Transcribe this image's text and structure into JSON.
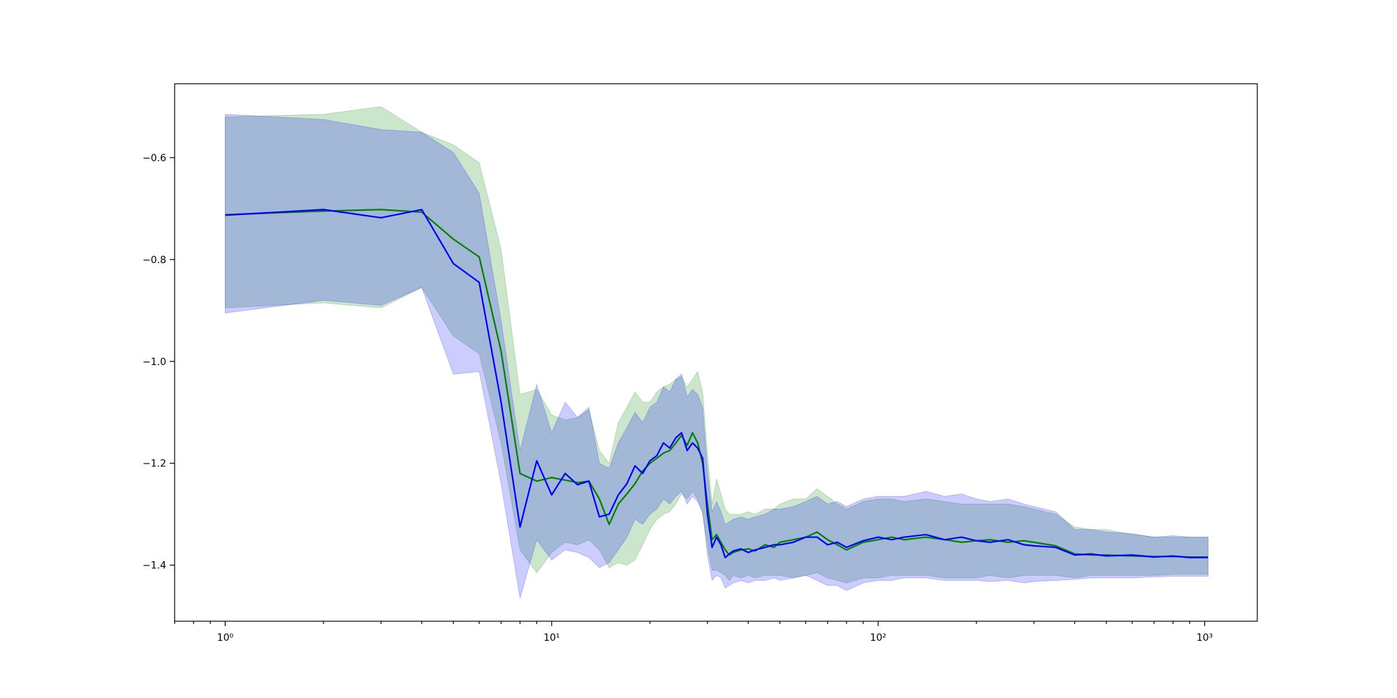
{
  "chart_data": {
    "type": "line",
    "title": "",
    "xlabel": "",
    "ylabel": "",
    "x_scale": "log",
    "xlim": [
      0.7,
      1450
    ],
    "ylim": [
      -1.51,
      -0.455
    ],
    "grid": false,
    "legend": "none",
    "x_ticks": [
      {
        "value": 1,
        "label": "10⁰"
      },
      {
        "value": 10,
        "label": "10¹"
      },
      {
        "value": 100,
        "label": "10²"
      },
      {
        "value": 1000,
        "label": "10³"
      }
    ],
    "y_ticks": [
      {
        "value": -0.6,
        "label": "−0.6"
      },
      {
        "value": -0.8,
        "label": "−0.8"
      },
      {
        "value": -1.0,
        "label": "−1.0"
      },
      {
        "value": -1.2,
        "label": "−1.2"
      },
      {
        "value": -1.4,
        "label": "−1.4"
      }
    ],
    "series": [
      {
        "color": "#008000",
        "band_color": "#008000",
        "band_opacity": 0.2,
        "x": [
          1,
          2,
          3,
          4,
          5,
          6,
          7,
          8,
          9,
          10,
          11,
          12,
          13,
          14,
          15,
          16,
          17,
          18,
          19,
          20,
          21,
          22,
          23,
          24,
          25,
          26,
          27,
          28,
          29,
          30,
          31,
          32,
          33,
          34,
          35,
          36,
          38,
          40,
          42,
          45,
          48,
          50,
          55,
          60,
          65,
          70,
          75,
          80,
          90,
          100,
          110,
          120,
          140,
          160,
          180,
          200,
          220,
          250,
          280,
          300,
          350,
          400,
          450,
          500,
          600,
          700,
          800,
          900,
          1024
        ],
        "values": [
          -0.712,
          -0.705,
          -0.702,
          -0.707,
          -0.76,
          -0.795,
          -0.98,
          -1.22,
          -1.235,
          -1.228,
          -1.233,
          -1.238,
          -1.235,
          -1.27,
          -1.32,
          -1.28,
          -1.26,
          -1.24,
          -1.215,
          -1.2,
          -1.19,
          -1.18,
          -1.175,
          -1.16,
          -1.145,
          -1.165,
          -1.14,
          -1.16,
          -1.2,
          -1.28,
          -1.35,
          -1.34,
          -1.355,
          -1.37,
          -1.38,
          -1.375,
          -1.37,
          -1.368,
          -1.372,
          -1.36,
          -1.365,
          -1.355,
          -1.35,
          -1.345,
          -1.335,
          -1.35,
          -1.36,
          -1.37,
          -1.355,
          -1.35,
          -1.345,
          -1.35,
          -1.345,
          -1.35,
          -1.355,
          -1.352,
          -1.35,
          -1.355,
          -1.352,
          -1.355,
          -1.362,
          -1.378,
          -1.38,
          -1.38,
          -1.382,
          -1.383,
          -1.383,
          -1.384,
          -1.384
        ],
        "band_low": [
          -0.895,
          -0.885,
          -0.895,
          -0.855,
          -0.95,
          -0.985,
          -1.16,
          -1.37,
          -1.415,
          -1.375,
          -1.355,
          -1.36,
          -1.35,
          -1.37,
          -1.405,
          -1.395,
          -1.4,
          -1.39,
          -1.36,
          -1.33,
          -1.31,
          -1.3,
          -1.295,
          -1.28,
          -1.26,
          -1.27,
          -1.255,
          -1.27,
          -1.3,
          -1.36,
          -1.41,
          -1.41,
          -1.415,
          -1.42,
          -1.43,
          -1.42,
          -1.425,
          -1.42,
          -1.425,
          -1.42,
          -1.42,
          -1.42,
          -1.425,
          -1.42,
          -1.415,
          -1.425,
          -1.43,
          -1.435,
          -1.425,
          -1.425,
          -1.42,
          -1.42,
          -1.42,
          -1.425,
          -1.425,
          -1.425,
          -1.42,
          -1.425,
          -1.42,
          -1.42,
          -1.42,
          -1.425,
          -1.42,
          -1.42,
          -1.42,
          -1.42,
          -1.418,
          -1.418,
          -1.418
        ],
        "band_high": [
          -0.52,
          -0.515,
          -0.5,
          -0.55,
          -0.575,
          -0.61,
          -0.78,
          -1.065,
          -1.055,
          -1.105,
          -1.115,
          -1.11,
          -1.095,
          -1.175,
          -1.2,
          -1.12,
          -1.09,
          -1.06,
          -1.08,
          -1.08,
          -1.06,
          -1.05,
          -1.045,
          -1.035,
          -1.03,
          -1.05,
          -1.035,
          -1.02,
          -1.06,
          -1.18,
          -1.28,
          -1.23,
          -1.26,
          -1.29,
          -1.3,
          -1.3,
          -1.3,
          -1.295,
          -1.3,
          -1.29,
          -1.29,
          -1.28,
          -1.27,
          -1.27,
          -1.25,
          -1.265,
          -1.28,
          -1.29,
          -1.275,
          -1.27,
          -1.27,
          -1.275,
          -1.27,
          -1.275,
          -1.28,
          -1.28,
          -1.28,
          -1.28,
          -1.285,
          -1.29,
          -1.3,
          -1.325,
          -1.33,
          -1.33,
          -1.34,
          -1.345,
          -1.345,
          -1.345,
          -1.345
        ]
      },
      {
        "color": "#0000ff",
        "band_color": "#0000ff",
        "band_opacity": 0.2,
        "x": [
          1,
          2,
          3,
          4,
          5,
          6,
          7,
          8,
          9,
          10,
          11,
          12,
          13,
          14,
          15,
          16,
          17,
          18,
          19,
          20,
          21,
          22,
          23,
          24,
          25,
          26,
          27,
          28,
          29,
          30,
          31,
          32,
          33,
          34,
          35,
          36,
          38,
          40,
          42,
          45,
          48,
          50,
          55,
          60,
          65,
          70,
          75,
          80,
          90,
          100,
          110,
          120,
          140,
          160,
          180,
          200,
          220,
          250,
          280,
          300,
          350,
          400,
          450,
          500,
          600,
          700,
          800,
          900,
          1024
        ],
        "values": [
          -0.713,
          -0.702,
          -0.718,
          -0.702,
          -0.808,
          -0.845,
          -1.08,
          -1.325,
          -1.195,
          -1.262,
          -1.22,
          -1.242,
          -1.235,
          -1.305,
          -1.3,
          -1.262,
          -1.24,
          -1.205,
          -1.22,
          -1.195,
          -1.185,
          -1.16,
          -1.17,
          -1.15,
          -1.14,
          -1.175,
          -1.16,
          -1.17,
          -1.19,
          -1.3,
          -1.365,
          -1.345,
          -1.36,
          -1.385,
          -1.378,
          -1.372,
          -1.368,
          -1.375,
          -1.37,
          -1.365,
          -1.36,
          -1.36,
          -1.355,
          -1.345,
          -1.345,
          -1.36,
          -1.355,
          -1.365,
          -1.352,
          -1.345,
          -1.35,
          -1.345,
          -1.34,
          -1.35,
          -1.345,
          -1.352,
          -1.355,
          -1.35,
          -1.36,
          -1.362,
          -1.365,
          -1.38,
          -1.378,
          -1.382,
          -1.38,
          -1.384,
          -1.382,
          -1.385,
          -1.385
        ],
        "band_low": [
          -0.905,
          -0.88,
          -0.89,
          -0.855,
          -1.025,
          -1.02,
          -1.24,
          -1.465,
          -1.35,
          -1.39,
          -1.37,
          -1.375,
          -1.385,
          -1.405,
          -1.395,
          -1.37,
          -1.345,
          -1.31,
          -1.32,
          -1.3,
          -1.29,
          -1.27,
          -1.28,
          -1.265,
          -1.255,
          -1.28,
          -1.265,
          -1.275,
          -1.295,
          -1.38,
          -1.43,
          -1.42,
          -1.425,
          -1.445,
          -1.44,
          -1.435,
          -1.43,
          -1.435,
          -1.43,
          -1.43,
          -1.425,
          -1.43,
          -1.425,
          -1.42,
          -1.43,
          -1.44,
          -1.44,
          -1.45,
          -1.435,
          -1.43,
          -1.43,
          -1.425,
          -1.425,
          -1.43,
          -1.43,
          -1.43,
          -1.432,
          -1.43,
          -1.435,
          -1.432,
          -1.43,
          -1.428,
          -1.425,
          -1.425,
          -1.425,
          -1.423,
          -1.422,
          -1.422,
          -1.422
        ],
        "band_high": [
          -0.515,
          -0.525,
          -0.545,
          -0.55,
          -0.59,
          -0.67,
          -0.92,
          -1.175,
          -1.045,
          -1.14,
          -1.08,
          -1.11,
          -1.09,
          -1.2,
          -1.21,
          -1.16,
          -1.13,
          -1.1,
          -1.12,
          -1.09,
          -1.08,
          -1.05,
          -1.06,
          -1.035,
          -1.025,
          -1.07,
          -1.055,
          -1.065,
          -1.09,
          -1.215,
          -1.295,
          -1.275,
          -1.295,
          -1.32,
          -1.315,
          -1.31,
          -1.305,
          -1.31,
          -1.305,
          -1.3,
          -1.29,
          -1.29,
          -1.285,
          -1.275,
          -1.265,
          -1.28,
          -1.275,
          -1.285,
          -1.27,
          -1.265,
          -1.265,
          -1.265,
          -1.255,
          -1.265,
          -1.26,
          -1.27,
          -1.275,
          -1.27,
          -1.28,
          -1.285,
          -1.295,
          -1.33,
          -1.33,
          -1.335,
          -1.338,
          -1.345,
          -1.342,
          -1.345,
          -1.345
        ]
      }
    ]
  }
}
